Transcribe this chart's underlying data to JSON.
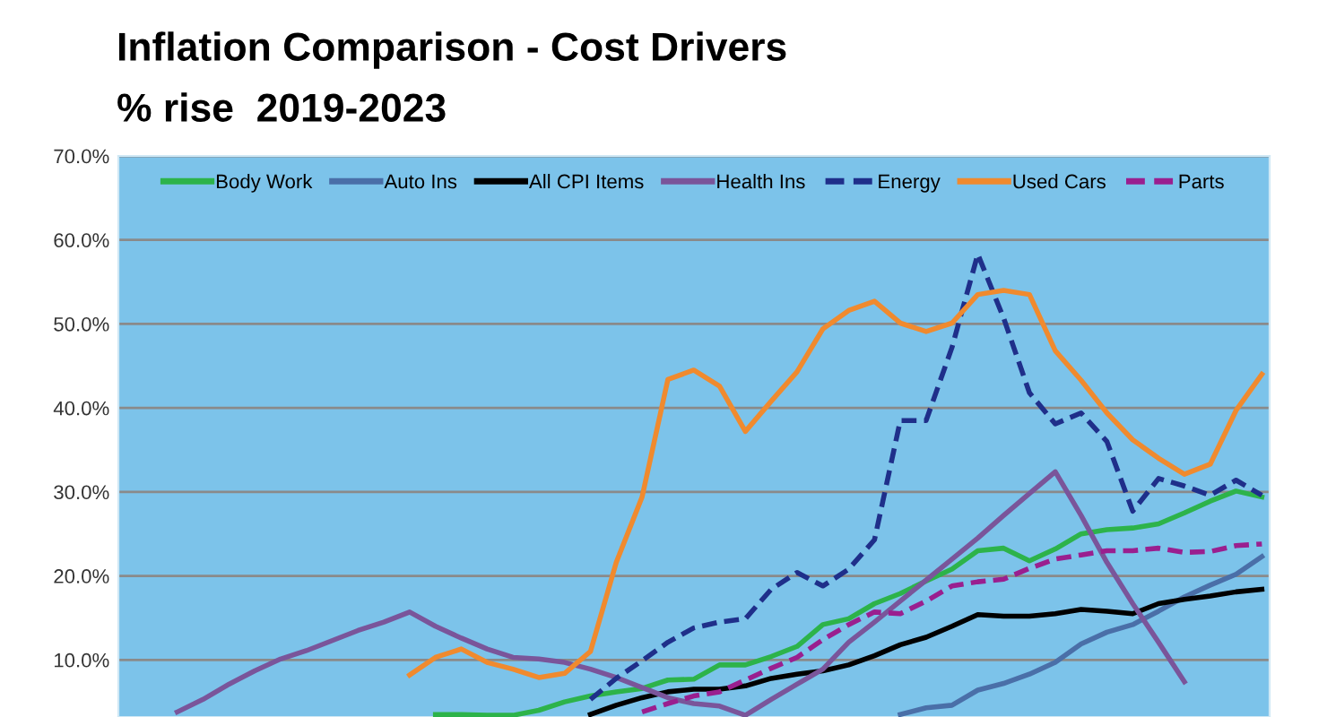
{
  "chart_data": {
    "type": "line",
    "title": "Inflation Comparison - Cost Drivers",
    "subtitle": "% rise  2019-2023",
    "categories": [
      null,
      null,
      null,
      null,
      null,
      null,
      null,
      null,
      null,
      null,
      null,
      null,
      null,
      null,
      null,
      null,
      null,
      null,
      null,
      null,
      null,
      null,
      null,
      null,
      null,
      null,
      null,
      null,
      null,
      null,
      null,
      null,
      null,
      null,
      null,
      null,
      null,
      null,
      null,
      null,
      null,
      null,
      null,
      null,
      null
    ],
    "series": [
      {
        "name": "Body Work",
        "color": "#2db34a",
        "line_style": "solid",
        "values": [
          null,
          null,
          null,
          null,
          null,
          null,
          null,
          null,
          null,
          null,
          null,
          null,
          3.5,
          3.5,
          3.4,
          3.4,
          4.0,
          5.0,
          5.7,
          6.2,
          6.6,
          7.6,
          7.7,
          9.4,
          9.4,
          10.4,
          11.6,
          14.2,
          14.9,
          16.7,
          17.9,
          19.4,
          20.8,
          23.0,
          23.3,
          21.8,
          23.2,
          25.0,
          25.5,
          25.7,
          26.2,
          27.5,
          28.9,
          30.1,
          29.4
        ]
      },
      {
        "name": "Auto Ins",
        "color": "#4a6fa8",
        "line_style": "solid",
        "values": [
          null,
          null,
          null,
          null,
          null,
          null,
          null,
          null,
          null,
          null,
          null,
          null,
          null,
          null,
          null,
          null,
          null,
          null,
          null,
          null,
          null,
          null,
          null,
          null,
          null,
          null,
          null,
          null,
          null,
          null,
          3.5,
          4.3,
          4.6,
          6.4,
          7.2,
          8.3,
          9.7,
          11.9,
          13.3,
          14.2,
          15.8,
          17.5,
          18.9,
          20.2,
          22.3
        ]
      },
      {
        "name": "All CPI Items",
        "color": "#000000",
        "line_style": "solid",
        "values": [
          null,
          null,
          null,
          null,
          null,
          null,
          null,
          null,
          null,
          null,
          null,
          null,
          null,
          null,
          null,
          null,
          null,
          null,
          3.5,
          4.6,
          5.5,
          6.2,
          6.5,
          6.5,
          6.9,
          7.8,
          8.3,
          8.7,
          9.4,
          10.5,
          11.8,
          12.7,
          14.0,
          15.4,
          15.2,
          15.2,
          15.5,
          16.0,
          15.8,
          15.5,
          16.7,
          17.2,
          17.6,
          18.1,
          18.4
        ]
      },
      {
        "name": "Health Ins",
        "color": "#7a559a",
        "line_style": "solid",
        "values": [
          null,
          null,
          3.8,
          5.3,
          7.1,
          8.7,
          10.1,
          11.1,
          12.3,
          13.5,
          14.5,
          15.7,
          14.0,
          12.6,
          11.3,
          10.3,
          10.1,
          9.7,
          8.9,
          7.9,
          6.7,
          5.5,
          4.8,
          4.5,
          3.4,
          5.3,
          7.1,
          8.9,
          12.1,
          14.5,
          17.0,
          19.5,
          22.0,
          24.5,
          27.2,
          29.8,
          32.4,
          27.2,
          21.6,
          16.7,
          12.1,
          7.4,
          null,
          null,
          null
        ]
      },
      {
        "name": "Energy",
        "color": "#1f2f8a",
        "line_style": "dashed",
        "values": [
          null,
          null,
          null,
          null,
          null,
          null,
          null,
          null,
          null,
          null,
          null,
          null,
          null,
          null,
          null,
          null,
          null,
          null,
          5.3,
          7.8,
          9.9,
          12.1,
          13.8,
          14.5,
          14.9,
          18.4,
          20.4,
          18.8,
          20.8,
          24.3,
          38.5,
          38.5,
          47.2,
          58.3,
          50.7,
          41.8,
          38.1,
          39.4,
          36.0,
          27.7,
          31.6,
          30.7,
          29.6,
          31.4,
          29.6
        ]
      },
      {
        "name": "Used Cars",
        "color": "#f08a2e",
        "line_style": "solid",
        "values": [
          null,
          null,
          null,
          null,
          null,
          null,
          null,
          null,
          null,
          null,
          null,
          8.2,
          10.3,
          11.3,
          9.7,
          8.9,
          7.9,
          8.4,
          11.0,
          21.6,
          29.4,
          43.4,
          44.5,
          42.6,
          37.2,
          40.8,
          44.3,
          49.4,
          51.6,
          52.7,
          50.1,
          49.1,
          50.1,
          53.5,
          54.0,
          53.5,
          46.8,
          43.3,
          39.4,
          36.2,
          34.0,
          32.1,
          33.3,
          39.7,
          44.0
        ]
      },
      {
        "name": "Parts",
        "color": "#9a1f8f",
        "line_style": "dashed",
        "values": [
          null,
          null,
          null,
          null,
          null,
          null,
          null,
          null,
          null,
          null,
          null,
          null,
          null,
          null,
          null,
          null,
          null,
          null,
          null,
          null,
          3.8,
          4.8,
          5.7,
          6.2,
          7.6,
          9.0,
          10.3,
          12.4,
          14.2,
          15.7,
          15.5,
          17.0,
          18.8,
          19.3,
          19.6,
          20.9,
          22.0,
          22.5,
          23.0,
          23.0,
          23.3,
          22.8,
          22.9,
          23.6,
          23.8
        ]
      }
    ],
    "ylim": [
      3.2,
      70
    ],
    "yticks": [
      {
        "value": 10,
        "label": "10.0%"
      },
      {
        "value": 20,
        "label": "20.0%"
      },
      {
        "value": 30,
        "label": "30.0%"
      },
      {
        "value": 40,
        "label": "40.0%"
      },
      {
        "value": 50,
        "label": "50.0%"
      },
      {
        "value": 60,
        "label": "60.0%"
      },
      {
        "value": 70,
        "label": "70.0%"
      }
    ],
    "grid": "y",
    "legend": "top",
    "tick_labels": "y",
    "marker": "none"
  }
}
